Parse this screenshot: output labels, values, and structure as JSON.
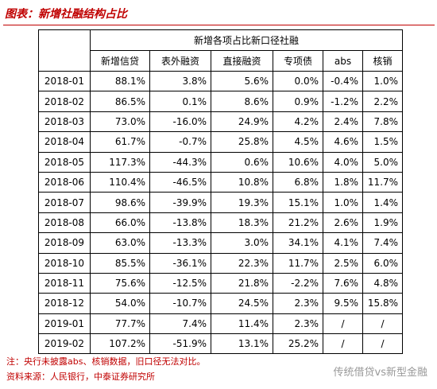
{
  "header": {
    "title": "图表：新增社融结构占比"
  },
  "table": {
    "group_header": "新增各项占比新口径社融",
    "columns": [
      "新增信贷",
      "表外融资",
      "直接融资",
      "专项债",
      "abs",
      "核销"
    ],
    "rows": [
      [
        "2018-01",
        "88.1%",
        "3.8%",
        "5.6%",
        "0.0%",
        "-0.4%",
        "1.0%"
      ],
      [
        "2018-02",
        "86.5%",
        "0.1%",
        "8.6%",
        "0.9%",
        "-1.2%",
        "2.2%"
      ],
      [
        "2018-03",
        "73.0%",
        "-16.0%",
        "24.9%",
        "4.2%",
        "2.4%",
        "7.8%"
      ],
      [
        "2018-04",
        "61.7%",
        "-0.7%",
        "25.8%",
        "4.5%",
        "4.6%",
        "1.5%"
      ],
      [
        "2018-05",
        "117.3%",
        "-44.3%",
        "0.6%",
        "10.6%",
        "4.0%",
        "5.0%"
      ],
      [
        "2018-06",
        "110.4%",
        "-46.5%",
        "10.8%",
        "6.8%",
        "1.8%",
        "11.7%"
      ],
      [
        "2018-07",
        "98.6%",
        "-39.9%",
        "19.3%",
        "15.1%",
        "1.0%",
        "1.4%"
      ],
      [
        "2018-08",
        "66.0%",
        "-13.8%",
        "18.3%",
        "21.2%",
        "2.6%",
        "1.9%"
      ],
      [
        "2018-09",
        "63.0%",
        "-13.3%",
        "3.0%",
        "34.1%",
        "4.1%",
        "7.4%"
      ],
      [
        "2018-10",
        "85.5%",
        "-36.1%",
        "22.3%",
        "11.7%",
        "2.5%",
        "6.0%"
      ],
      [
        "2018-11",
        "75.6%",
        "-12.5%",
        "21.8%",
        "-2.2%",
        "7.6%",
        "4.8%"
      ],
      [
        "2018-12",
        "54.0%",
        "-10.7%",
        "24.5%",
        "2.3%",
        "9.5%",
        "15.8%"
      ],
      [
        "2019-01",
        "77.7%",
        "7.4%",
        "11.4%",
        "2.3%",
        "/",
        "/"
      ],
      [
        "2019-02",
        "107.2%",
        "-51.9%",
        "13.1%",
        "25.2%",
        "/",
        "/"
      ]
    ]
  },
  "notes": [
    "注：央行未披露abs、核销数据，旧口径无法对比。",
    "资料来源：人民银行，中泰证券研究所"
  ],
  "watermark": "传统借贷vs新型金融"
}
